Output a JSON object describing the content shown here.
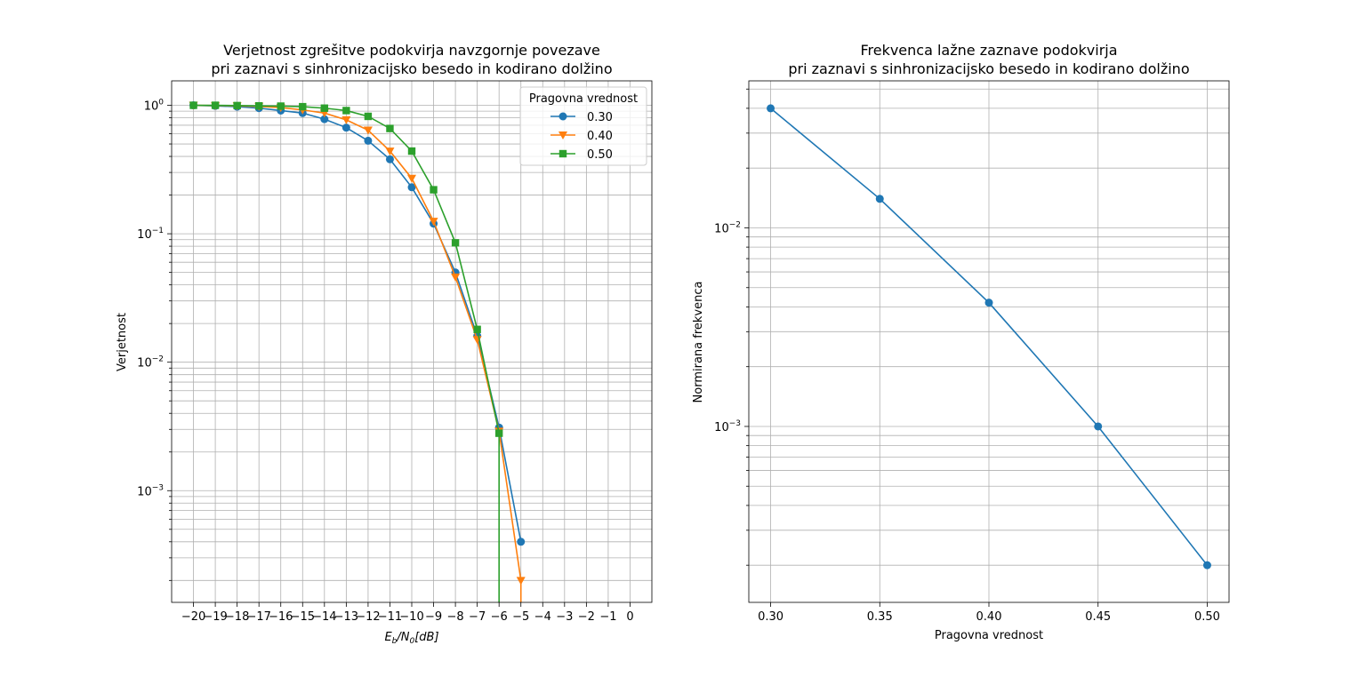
{
  "chart_data": [
    {
      "type": "line",
      "title": "Verjetnost zgrešitve podokvirja navzgornje povezave",
      "subtitle": "pri zaznavi s sinhronizacijsko besedo in kodirano dolžino",
      "xlabel_base": "E",
      "xlabel_sub1": "b",
      "xlabel_mid": "/N",
      "xlabel_sub2": "0",
      "xlabel_tail": "[dB]",
      "ylabel": "Verjetnost",
      "yscale": "log",
      "xlim": [
        -21,
        1
      ],
      "ylim": [
        0.000135,
        1.55
      ],
      "grid": true,
      "xticks": [
        -20,
        -19,
        -18,
        -17,
        -16,
        -15,
        -14,
        -13,
        -12,
        -11,
        -10,
        -9,
        -8,
        -7,
        -6,
        -5,
        -4,
        -3,
        -2,
        -1,
        0
      ],
      "yticks": [
        {
          "value": 1,
          "base": "10",
          "exp": "0"
        },
        {
          "value": 0.1,
          "base": "10",
          "exp": "−1"
        },
        {
          "value": 0.01,
          "base": "10",
          "exp": "−2"
        },
        {
          "value": 0.001,
          "base": "10",
          "exp": "−3"
        }
      ],
      "legend": {
        "title": "Pragovna vrednost",
        "position": "top-right"
      },
      "series": [
        {
          "name": "0.30",
          "color": "#1f77b4",
          "marker": "circle",
          "x": [
            -20,
            -19,
            -18,
            -17,
            -16,
            -15,
            -14,
            -13,
            -12,
            -11,
            -10,
            -9,
            -8,
            -7,
            -6,
            -5
          ],
          "y": [
            1.0,
            0.99,
            0.975,
            0.95,
            0.91,
            0.87,
            0.78,
            0.67,
            0.53,
            0.38,
            0.23,
            0.12,
            0.05,
            0.016,
            0.0031,
            0.0004
          ]
        },
        {
          "name": "0.40",
          "color": "#ff7f0e",
          "marker": "triangle-down",
          "x": [
            -20,
            -19,
            -18,
            -17,
            -16,
            -15,
            -14,
            -13,
            -12,
            -11,
            -10,
            -9,
            -8,
            -7,
            -6,
            -5,
            -5
          ],
          "y": [
            1.0,
            0.995,
            0.99,
            0.98,
            0.96,
            0.92,
            0.87,
            0.77,
            0.64,
            0.44,
            0.27,
            0.125,
            0.046,
            0.015,
            0.0029,
            0.0002,
            0.000135
          ]
        },
        {
          "name": "0.50",
          "color": "#2ca02c",
          "marker": "square",
          "x": [
            -20,
            -19,
            -18,
            -17,
            -16,
            -15,
            -14,
            -13,
            -12,
            -11,
            -10,
            -9,
            -8,
            -7,
            -6,
            -6
          ],
          "y": [
            1.0,
            1.0,
            0.995,
            0.99,
            0.985,
            0.975,
            0.95,
            0.91,
            0.82,
            0.66,
            0.44,
            0.22,
            0.085,
            0.018,
            0.0028,
            0.000135
          ]
        }
      ]
    },
    {
      "type": "line",
      "title": "Frekvenca lažne zaznave podokvirja",
      "subtitle": "pri zaznavi s sinhronizacijsko besedo in kodirano dolžino",
      "xlabel": "Pragovna vrednost",
      "ylabel": "Normirana frekvenca",
      "yscale": "log",
      "xlim": [
        0.29,
        0.51
      ],
      "ylim": [
        0.00013,
        0.055
      ],
      "grid": true,
      "xticks": [
        "0.30",
        "0.35",
        "0.40",
        "0.45",
        "0.50"
      ],
      "yticks": [
        {
          "value": 0.01,
          "base": "10",
          "exp": "−2"
        },
        {
          "value": 0.001,
          "base": "10",
          "exp": "−3"
        }
      ],
      "series": [
        {
          "color": "#1f77b4",
          "marker": "circle",
          "x": [
            0.3,
            0.35,
            0.4,
            0.45,
            0.5
          ],
          "y": [
            0.04,
            0.014,
            0.0042,
            0.001,
            0.0002
          ]
        }
      ]
    }
  ]
}
